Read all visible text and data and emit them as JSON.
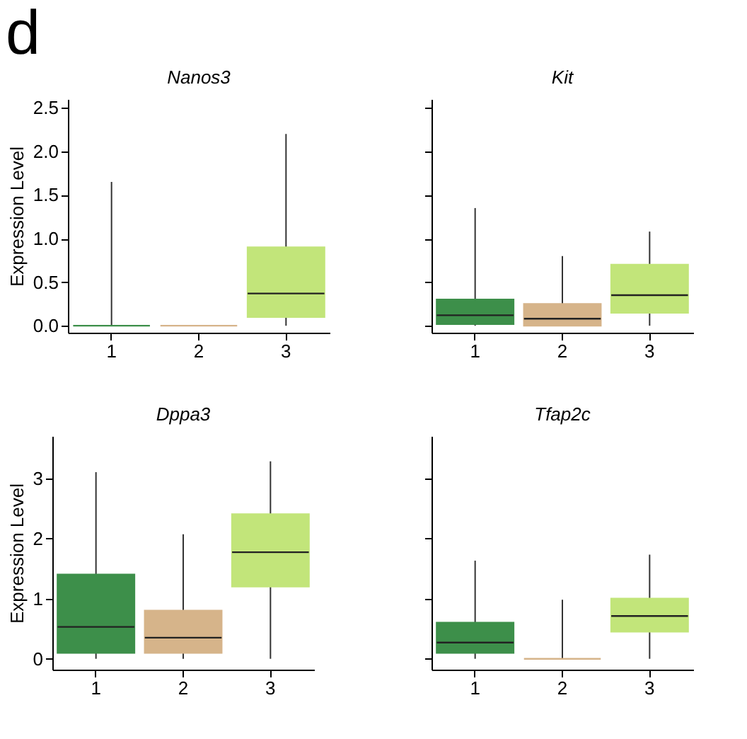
{
  "chart_data": [
    {
      "type": "box",
      "title": "Nanos3",
      "ylabel": "Expression Level",
      "annotations": [
        "d"
      ],
      "categories": [
        "1",
        "2",
        "3"
      ],
      "colors": [
        "#3d8f4a",
        "#d6b48a",
        "#c2e57a"
      ],
      "ylim": [
        -0.08,
        2.6
      ],
      "yticks": [
        {
          "value": 0,
          "label": "0.0"
        },
        {
          "value": 0.5,
          "label": "0.5"
        },
        {
          "value": 1,
          "label": "1.0"
        },
        {
          "value": 1.5,
          "label": "1.5"
        },
        {
          "value": 2,
          "label": "2.0"
        },
        {
          "value": 2.5,
          "label": "2.5"
        }
      ],
      "grid": false,
      "boxes": [
        {
          "low": 0,
          "q1": 0,
          "median": 0,
          "q3": 0,
          "high": 1.65
        },
        {
          "low": 0,
          "q1": 0,
          "median": 0,
          "q3": 0,
          "high": 0
        },
        {
          "low": 0,
          "q1": 0.1,
          "median": 0.37,
          "q3": 0.9,
          "high": 2.2
        }
      ]
    },
    {
      "type": "box",
      "title": "Kit",
      "categories": [
        "1",
        "2",
        "3"
      ],
      "colors": [
        "#3d8f4a",
        "#d6b48a",
        "#c2e57a"
      ],
      "ylim": [
        -0.08,
        2.6
      ],
      "yticks": [
        0,
        0.5,
        1,
        1.5,
        2,
        2.5
      ],
      "tick_labels": "x",
      "grid": false,
      "boxes": [
        {
          "low": 0,
          "q1": 0.02,
          "median": 0.12,
          "q3": 0.3,
          "high": 1.35
        },
        {
          "low": 0,
          "q1": 0,
          "median": 0.08,
          "q3": 0.25,
          "high": 0.8
        },
        {
          "low": 0,
          "q1": 0.15,
          "median": 0.35,
          "q3": 0.7,
          "high": 1.08
        }
      ]
    },
    {
      "type": "box",
      "title": "Dppa3",
      "ylabel": "Expression Level",
      "categories": [
        "1",
        "2",
        "3"
      ],
      "colors": [
        "#3d8f4a",
        "#d6b48a",
        "#c2e57a"
      ],
      "ylim": [
        -0.18,
        3.7
      ],
      "yticks": [
        0,
        1,
        2,
        3
      ],
      "grid": false,
      "boxes": [
        {
          "low": 0,
          "q1": 0.1,
          "median": 0.53,
          "q3": 1.4,
          "high": 3.1
        },
        {
          "low": 0,
          "q1": 0.1,
          "median": 0.35,
          "q3": 0.8,
          "high": 2.07
        },
        {
          "low": 0,
          "q1": 1.2,
          "median": 1.77,
          "q3": 2.4,
          "high": 3.28
        }
      ]
    },
    {
      "type": "box",
      "title": "Tfap2c",
      "categories": [
        "1",
        "2",
        "3"
      ],
      "colors": [
        "#3d8f4a",
        "#d6b48a",
        "#c2e57a"
      ],
      "ylim": [
        -0.18,
        3.7
      ],
      "yticks": [
        0,
        1,
        2,
        3
      ],
      "tick_labels": "x",
      "grid": false,
      "boxes": [
        {
          "low": 0,
          "q1": 0.1,
          "median": 0.27,
          "q3": 0.6,
          "high": 1.63
        },
        {
          "low": 0,
          "q1": 0,
          "median": 0,
          "q3": 0,
          "high": 0.98
        },
        {
          "low": 0,
          "q1": 0.45,
          "median": 0.71,
          "q3": 1.0,
          "high": 1.73
        }
      ]
    }
  ]
}
